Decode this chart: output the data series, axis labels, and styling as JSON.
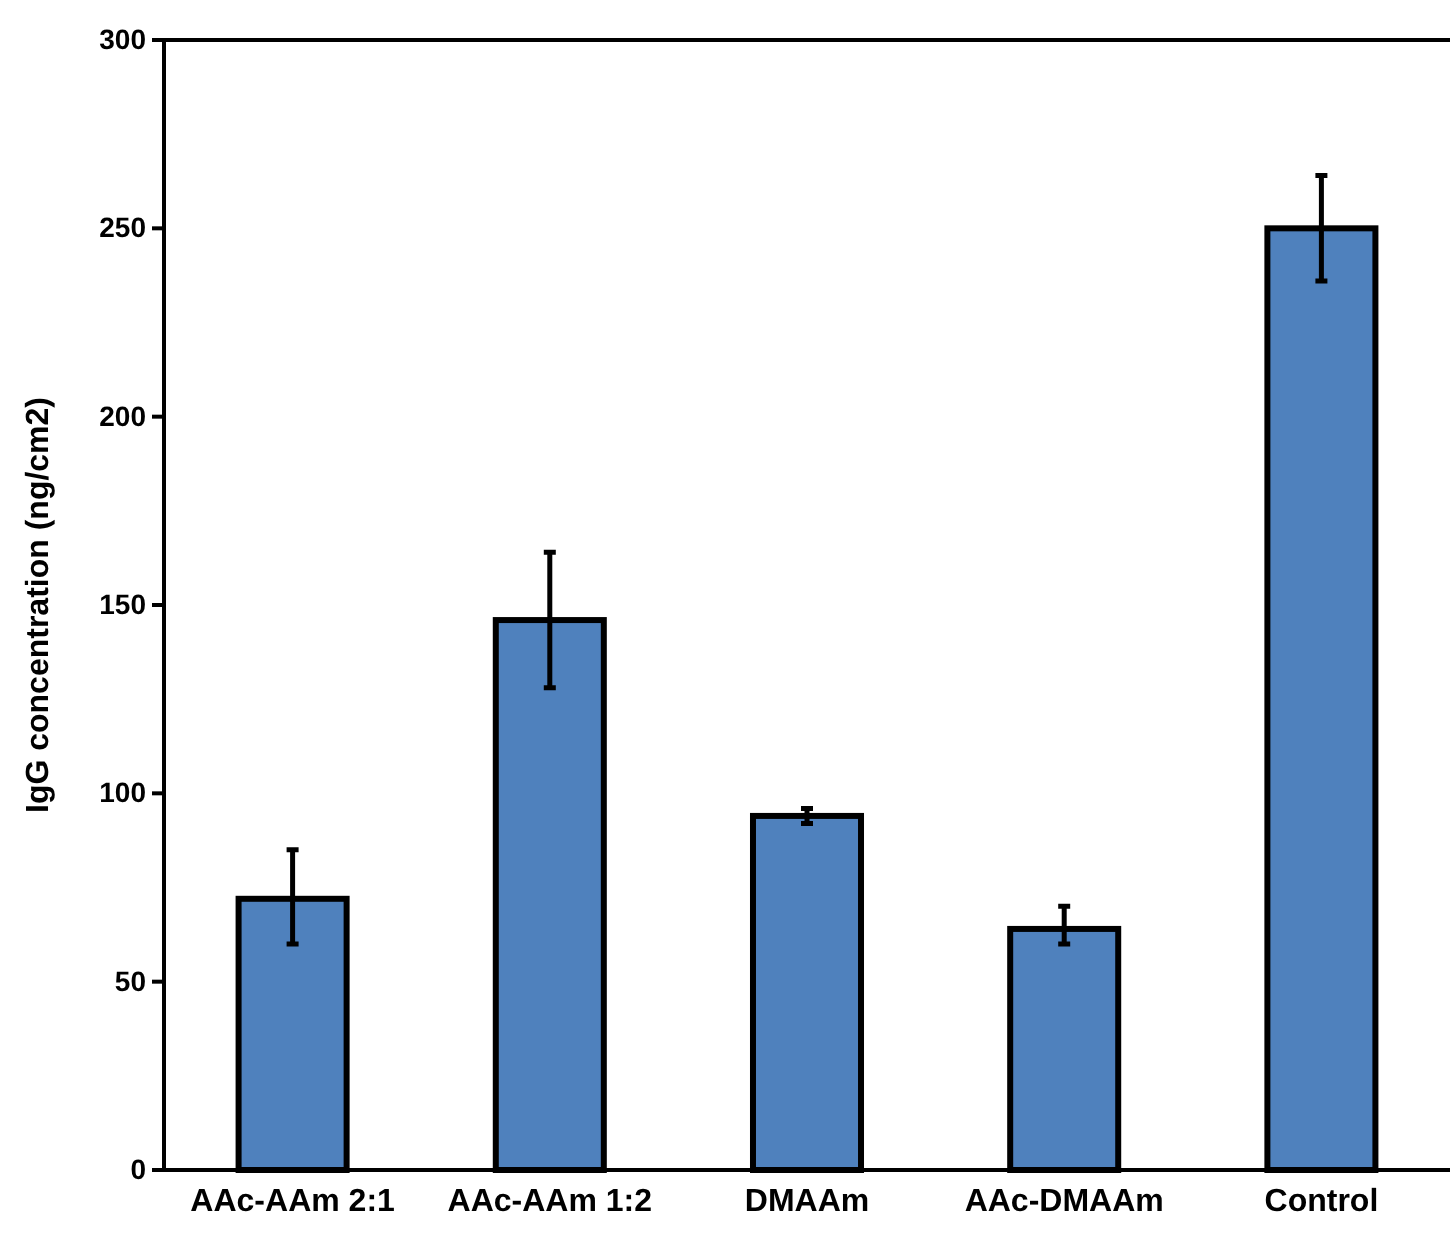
{
  "chart_data": {
    "type": "bar",
    "ylabel": "IgG concentration (ng/cm2)",
    "categories": [
      "AAc-AAm 2:1",
      "AAc-AAm 1:2",
      "DMAAm",
      "AAc-DMAAm",
      "Control"
    ],
    "values": [
      72,
      146,
      94,
      64,
      250
    ],
    "errors": [
      [
        60,
        85
      ],
      [
        128,
        164
      ],
      [
        92,
        96
      ],
      [
        60,
        70
      ],
      [
        236,
        264
      ]
    ],
    "color": "#4f81bd",
    "ylim": [
      0,
      300
    ],
    "yticks": [
      0,
      50,
      100,
      150,
      200,
      250,
      300
    ],
    "grid": false
  }
}
